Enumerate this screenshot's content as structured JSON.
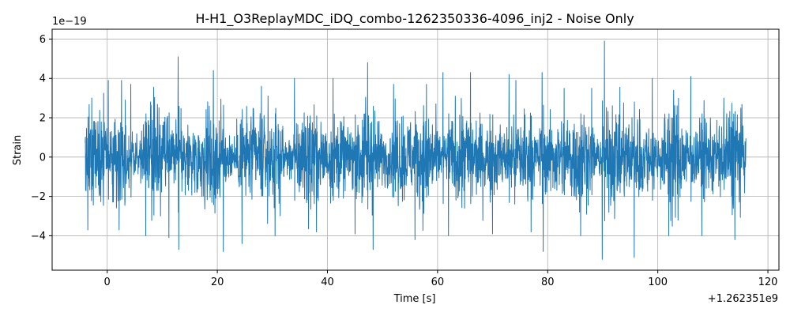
{
  "chart_data": {
    "type": "line",
    "title": "H-H1_O3ReplayMDC_iDQ_combo-1262350336-4096_inj2 - Noise Only",
    "xlabel": "Time [s]",
    "ylabel": "Strain",
    "x_offset_label": "+1.262351e9",
    "y_scale_label": "1e−19",
    "xlim": [
      -10,
      122
    ],
    "ylim": [
      -5.75,
      6.5
    ],
    "x_ticks": [
      0,
      20,
      40,
      60,
      80,
      100,
      120
    ],
    "x_tick_labels": [
      "0",
      "20",
      "40",
      "60",
      "80",
      "100",
      "120"
    ],
    "y_ticks": [
      -4,
      -2,
      0,
      2,
      4,
      6
    ],
    "y_tick_labels": [
      "−4",
      "−2",
      "0",
      "2",
      "4",
      "6"
    ],
    "grid": true,
    "line_color": "#1f77b4",
    "series": [
      {
        "x_start": -4,
        "x_end": 116,
        "typical_envelope": 2.2,
        "peaks": [
          {
            "x": -2.8,
            "y": 3.0
          },
          {
            "x": -3.5,
            "y": -3.7
          },
          {
            "x": 0.2,
            "y": 3.9
          },
          {
            "x": 2.6,
            "y": 3.9
          },
          {
            "x": 4.3,
            "y": 3.7
          },
          {
            "x": 7.0,
            "y": -4.0
          },
          {
            "x": 11.2,
            "y": -4.1
          },
          {
            "x": 12.9,
            "y": 5.1
          },
          {
            "x": 13.0,
            "y": -4.7
          },
          {
            "x": 19.3,
            "y": 4.4
          },
          {
            "x": 21.1,
            "y": -4.8
          },
          {
            "x": 24.5,
            "y": -4.4
          },
          {
            "x": 28.0,
            "y": 3.6
          },
          {
            "x": 30.5,
            "y": -4.0
          },
          {
            "x": 34.0,
            "y": 4.0
          },
          {
            "x": 38.0,
            "y": -3.8
          },
          {
            "x": 41.0,
            "y": 4.0
          },
          {
            "x": 45.0,
            "y": -3.9
          },
          {
            "x": 47.3,
            "y": 4.8
          },
          {
            "x": 48.3,
            "y": -4.7
          },
          {
            "x": 52.0,
            "y": 3.7
          },
          {
            "x": 55.9,
            "y": -4.2
          },
          {
            "x": 58.0,
            "y": 3.7
          },
          {
            "x": 61.0,
            "y": 4.3
          },
          {
            "x": 62.0,
            "y": -4.0
          },
          {
            "x": 66.0,
            "y": 4.3
          },
          {
            "x": 70.0,
            "y": -3.9
          },
          {
            "x": 73.0,
            "y": 4.2
          },
          {
            "x": 77.0,
            "y": -3.8
          },
          {
            "x": 79.0,
            "y": 4.3
          },
          {
            "x": 79.2,
            "y": -4.8
          },
          {
            "x": 83.0,
            "y": 3.5
          },
          {
            "x": 86.0,
            "y": -4.0
          },
          {
            "x": 88.0,
            "y": 3.5
          },
          {
            "x": 90.3,
            "y": 5.9
          },
          {
            "x": 89.9,
            "y": -5.2
          },
          {
            "x": 95.7,
            "y": -5.1
          },
          {
            "x": 99.0,
            "y": 4.0
          },
          {
            "x": 102.0,
            "y": -4.0
          },
          {
            "x": 106.0,
            "y": 4.1
          },
          {
            "x": 108.0,
            "y": -4.0
          },
          {
            "x": 112.0,
            "y": 3.0
          },
          {
            "x": 114.0,
            "y": -4.2
          }
        ]
      }
    ]
  }
}
